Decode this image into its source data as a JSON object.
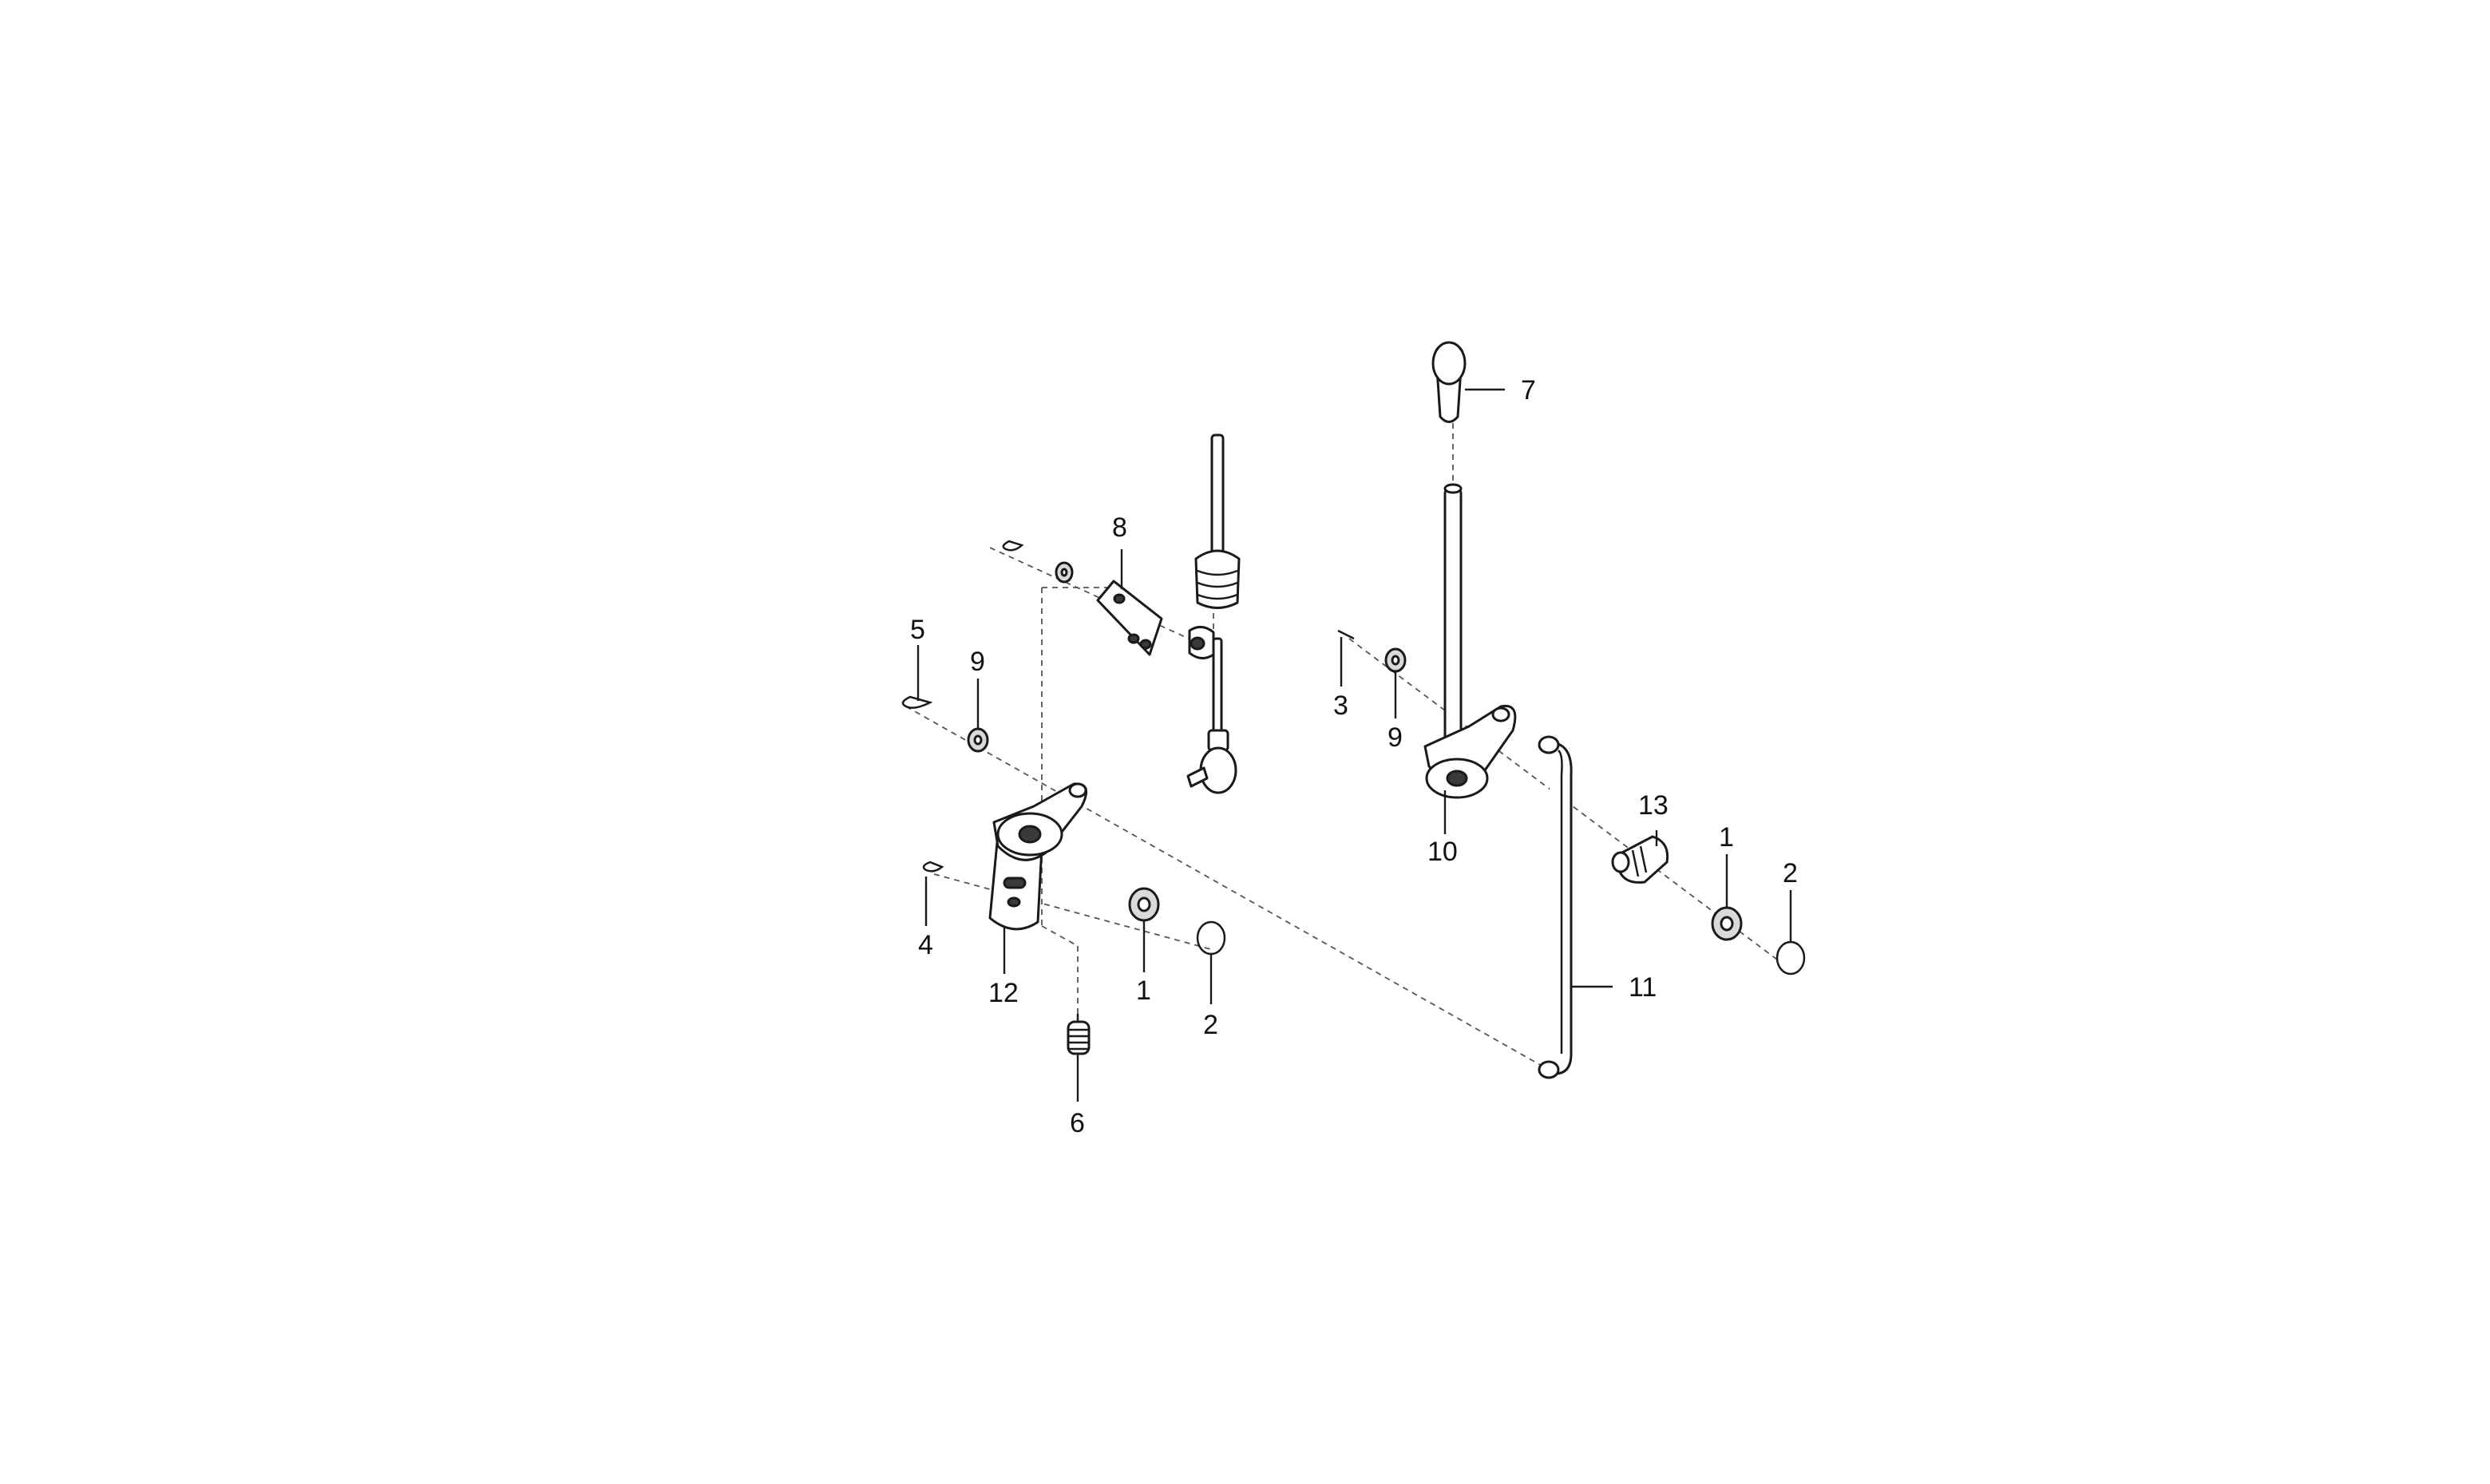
{
  "callouts": [
    {
      "id": "1a",
      "text": "1"
    },
    {
      "id": "1b",
      "text": "1"
    },
    {
      "id": "2a",
      "text": "2"
    },
    {
      "id": "2b",
      "text": "2"
    },
    {
      "id": "3",
      "text": "3"
    },
    {
      "id": "4",
      "text": "4"
    },
    {
      "id": "5",
      "text": "5"
    },
    {
      "id": "6",
      "text": "6"
    },
    {
      "id": "7",
      "text": "7"
    },
    {
      "id": "8",
      "text": "8"
    },
    {
      "id": "9a",
      "text": "9"
    },
    {
      "id": "9b",
      "text": "9"
    },
    {
      "id": "10",
      "text": "10"
    },
    {
      "id": "11",
      "text": "11"
    },
    {
      "id": "12",
      "text": "12"
    },
    {
      "id": "13",
      "text": "13"
    }
  ],
  "colors": {
    "line": "#1a1a1a",
    "axis": "#555555",
    "background": "#ffffff",
    "shade": "#d9d9d9"
  }
}
